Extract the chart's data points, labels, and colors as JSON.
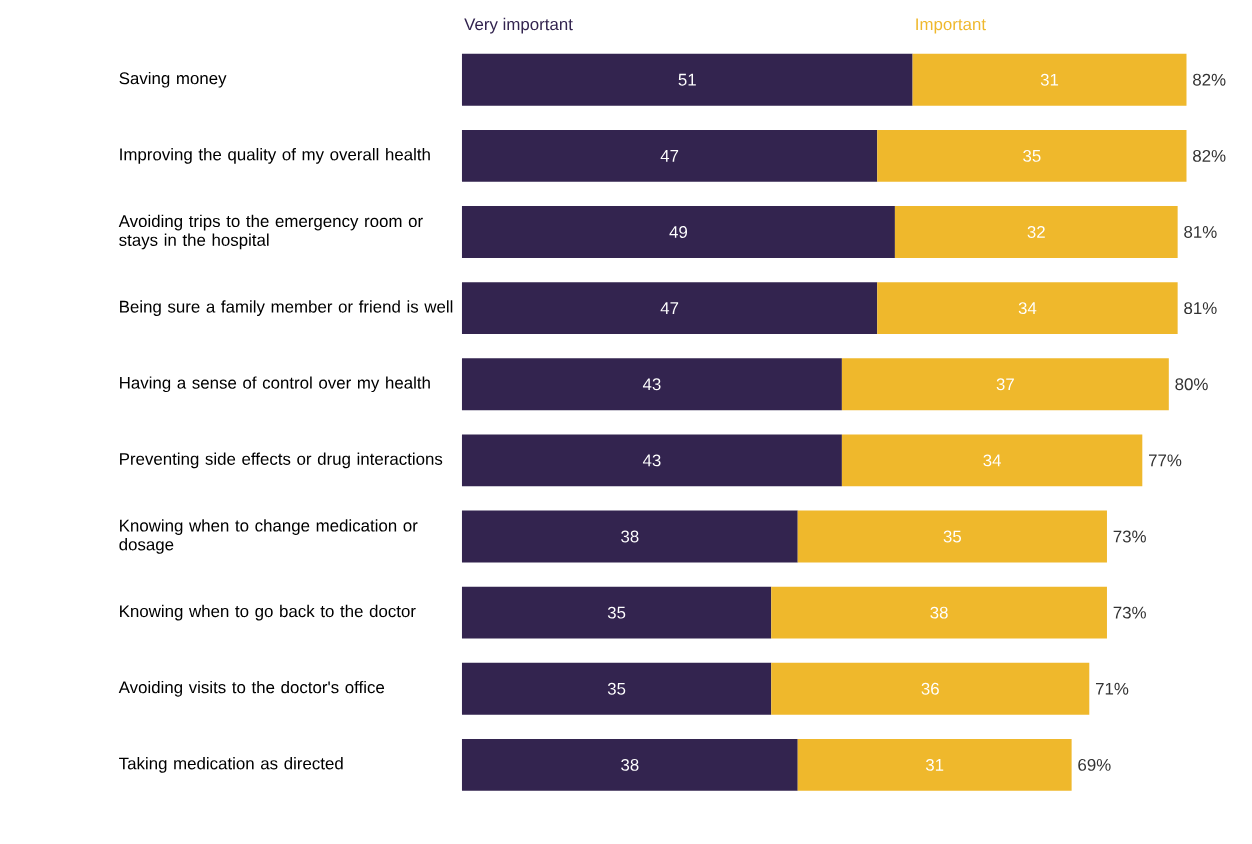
{
  "chart_data": {
    "type": "bar",
    "orientation": "horizontal",
    "stacked": true,
    "data_labels": true,
    "tick_labels": "y",
    "categories": [
      "Saving money",
      "Improving the quality of my overall health",
      "Avoiding trips to the emergency room or stays in the hospital",
      "Being sure a family member or friend is well",
      "Having a sense of control over my health",
      "Preventing side effects or drug interactions",
      "Knowing when to change medication or dosage",
      "Knowing when to go back to the doctor",
      "Avoiding visits to the doctor's office",
      "Taking medication as directed"
    ],
    "series": [
      {
        "name": "Very important",
        "color": "#33244f",
        "values": [
          51,
          47,
          49,
          47,
          43,
          43,
          38,
          35,
          35,
          38
        ]
      },
      {
        "name": "Important",
        "color": "#efb82c",
        "values": [
          31,
          35,
          32,
          34,
          37,
          34,
          35,
          38,
          36,
          31
        ]
      }
    ],
    "totals": [
      "82%",
      "82%",
      "81%",
      "81%",
      "80%",
      "77%",
      "73%",
      "73%",
      "71%",
      "69%"
    ]
  }
}
